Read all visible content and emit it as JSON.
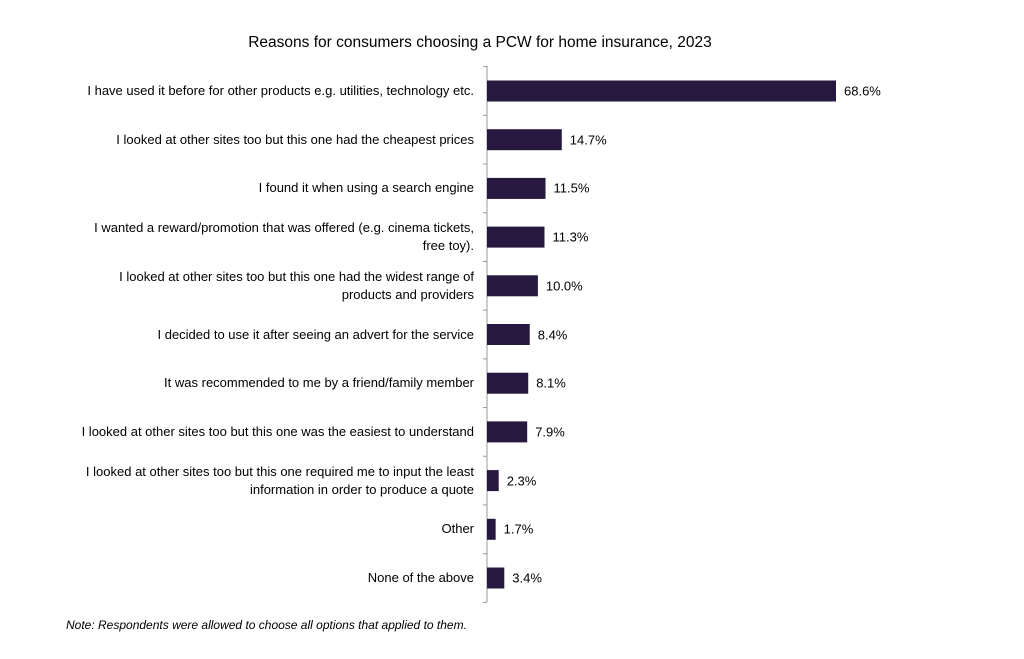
{
  "chart_data": {
    "type": "bar",
    "orientation": "horizontal",
    "title": "Reasons for consumers choosing a PCW for home insurance, 2023",
    "categories": [
      "I have used it before for other products e.g. utilities, technology etc.",
      "I looked at other sites too but this one had the cheapest prices",
      "I found it when using a search engine",
      "I wanted a reward/promotion that was offered (e.g. cinema tickets, free toy).",
      "I looked at other sites too but this one had the widest range of products and providers",
      "I decided to use it after seeing an advert for the service",
      "It was recommended to me by a friend/family member",
      "I looked at other sites too but this one was the easiest to understand",
      "I looked at other sites too but this one required me to input the least information in order to produce a quote",
      "Other",
      "None of the above"
    ],
    "values": [
      68.6,
      14.7,
      11.5,
      11.3,
      10.0,
      8.4,
      8.1,
      7.9,
      2.3,
      1.7,
      3.4
    ],
    "value_labels": [
      "68.6%",
      "14.7%",
      "11.5%",
      "11.3%",
      "10.0%",
      "8.4%",
      "8.1%",
      "7.9%",
      "2.3%",
      "1.7%",
      "3.4%"
    ],
    "color": "#26183f",
    "note": "Note: Respondents were allowed to choose all options that applied to them."
  }
}
